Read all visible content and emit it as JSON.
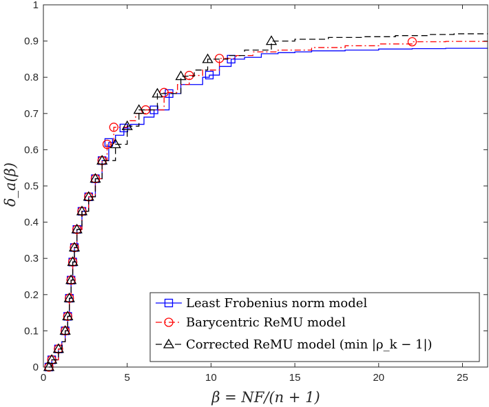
{
  "chart_data": {
    "type": "line",
    "title": "",
    "xlabel": "β = NF/(n + 1)",
    "ylabel": "δ_a(β)",
    "xlim": [
      0,
      26.5
    ],
    "ylim": [
      0,
      1
    ],
    "xticks": [
      0,
      5,
      10,
      15,
      20,
      25
    ],
    "yticks": [
      0,
      0.1,
      0.2,
      0.3,
      0.4,
      0.5,
      0.6,
      0.7,
      0.8,
      0.9,
      1
    ],
    "xtick_labels": [
      "0",
      "5",
      "10",
      "15",
      "20",
      "25"
    ],
    "ytick_labels": [
      "0",
      "0.1",
      "0.2",
      "0.3",
      "0.4",
      "0.5",
      "0.6",
      "0.7",
      "0.8",
      "0.9",
      "1"
    ],
    "grid": false,
    "legend_position": "bottom-right",
    "series": [
      {
        "name": "Least Frobenius norm model",
        "color": "#0000ff",
        "line_style": "solid",
        "marker": "square",
        "points": [
          [
            0.33,
            0.0
          ],
          [
            0.5,
            0.02
          ],
          [
            0.9,
            0.05
          ],
          [
            1.1,
            0.07
          ],
          [
            1.3,
            0.1
          ],
          [
            1.45,
            0.14
          ],
          [
            1.55,
            0.19
          ],
          [
            1.65,
            0.24
          ],
          [
            1.75,
            0.29
          ],
          [
            1.85,
            0.33
          ],
          [
            2.0,
            0.38
          ],
          [
            2.3,
            0.43
          ],
          [
            2.7,
            0.47
          ],
          [
            3.1,
            0.52
          ],
          [
            3.5,
            0.57
          ],
          [
            3.9,
            0.62
          ],
          [
            4.3,
            0.64
          ],
          [
            4.8,
            0.66
          ],
          [
            5.2,
            0.67
          ],
          [
            6.0,
            0.69
          ],
          [
            6.6,
            0.71
          ],
          [
            7.5,
            0.755
          ],
          [
            8.2,
            0.78
          ],
          [
            9.5,
            0.8
          ],
          [
            9.9,
            0.806
          ],
          [
            10.5,
            0.83
          ],
          [
            11.2,
            0.85
          ],
          [
            12.0,
            0.855
          ],
          [
            13.0,
            0.865
          ],
          [
            14.0,
            0.868
          ],
          [
            15.0,
            0.87
          ],
          [
            16.0,
            0.873
          ],
          [
            18.0,
            0.875
          ],
          [
            20.0,
            0.878
          ],
          [
            22.0,
            0.879
          ],
          [
            24.0,
            0.88
          ],
          [
            26.5,
            0.881
          ]
        ],
        "markers": [
          [
            0.33,
            0.0
          ],
          [
            0.5,
            0.02
          ],
          [
            0.9,
            0.05
          ],
          [
            1.3,
            0.1
          ],
          [
            1.45,
            0.14
          ],
          [
            1.55,
            0.19
          ],
          [
            1.65,
            0.24
          ],
          [
            1.75,
            0.29
          ],
          [
            1.85,
            0.33
          ],
          [
            2.0,
            0.38
          ],
          [
            2.3,
            0.43
          ],
          [
            2.7,
            0.47
          ],
          [
            3.1,
            0.52
          ],
          [
            3.5,
            0.57
          ],
          [
            3.9,
            0.62
          ],
          [
            4.8,
            0.66
          ],
          [
            6.6,
            0.71
          ],
          [
            7.5,
            0.755
          ],
          [
            9.9,
            0.806
          ],
          [
            11.2,
            0.85
          ]
        ]
      },
      {
        "name": "Barycentric ReMU model",
        "color": "#ff0000",
        "line_style": "dashdot",
        "marker": "circle",
        "points": [
          [
            0.33,
            0.0
          ],
          [
            0.5,
            0.02
          ],
          [
            0.9,
            0.05
          ],
          [
            1.1,
            0.07
          ],
          [
            1.3,
            0.1
          ],
          [
            1.45,
            0.14
          ],
          [
            1.55,
            0.19
          ],
          [
            1.65,
            0.24
          ],
          [
            1.75,
            0.29
          ],
          [
            1.85,
            0.33
          ],
          [
            2.0,
            0.38
          ],
          [
            2.3,
            0.43
          ],
          [
            2.7,
            0.47
          ],
          [
            3.1,
            0.52
          ],
          [
            3.5,
            0.57
          ],
          [
            3.8,
            0.615
          ],
          [
            4.2,
            0.662
          ],
          [
            5.0,
            0.68
          ],
          [
            5.5,
            0.7
          ],
          [
            6.1,
            0.71
          ],
          [
            7.2,
            0.758
          ],
          [
            8.0,
            0.78
          ],
          [
            8.7,
            0.805
          ],
          [
            9.5,
            0.82
          ],
          [
            10.5,
            0.852
          ],
          [
            11.5,
            0.86
          ],
          [
            12.5,
            0.87
          ],
          [
            14.0,
            0.875
          ],
          [
            16.0,
            0.882
          ],
          [
            18.0,
            0.887
          ],
          [
            20.0,
            0.892
          ],
          [
            22.0,
            0.898
          ],
          [
            24.0,
            0.899
          ],
          [
            26.5,
            0.9
          ]
        ],
        "markers": [
          [
            0.33,
            0.0
          ],
          [
            0.5,
            0.02
          ],
          [
            0.9,
            0.05
          ],
          [
            1.3,
            0.1
          ],
          [
            1.45,
            0.14
          ],
          [
            1.55,
            0.19
          ],
          [
            1.65,
            0.24
          ],
          [
            1.75,
            0.29
          ],
          [
            1.85,
            0.33
          ],
          [
            2.0,
            0.38
          ],
          [
            2.3,
            0.43
          ],
          [
            2.7,
            0.47
          ],
          [
            3.1,
            0.52
          ],
          [
            3.5,
            0.57
          ],
          [
            3.8,
            0.615
          ],
          [
            4.2,
            0.662
          ],
          [
            6.1,
            0.71
          ],
          [
            7.2,
            0.758
          ],
          [
            8.7,
            0.805
          ],
          [
            10.5,
            0.852
          ],
          [
            22.0,
            0.898
          ]
        ]
      },
      {
        "name": "Corrected ReMU model (min |ρ_k − 1|)",
        "color": "#000000",
        "line_style": "dashed",
        "marker": "triangle",
        "points": [
          [
            0.33,
            0.0
          ],
          [
            0.5,
            0.02
          ],
          [
            0.9,
            0.05
          ],
          [
            1.1,
            0.07
          ],
          [
            1.3,
            0.1
          ],
          [
            1.45,
            0.14
          ],
          [
            1.55,
            0.19
          ],
          [
            1.65,
            0.24
          ],
          [
            1.75,
            0.29
          ],
          [
            1.85,
            0.33
          ],
          [
            2.0,
            0.38
          ],
          [
            2.3,
            0.43
          ],
          [
            2.7,
            0.47
          ],
          [
            3.1,
            0.52
          ],
          [
            3.5,
            0.57
          ],
          [
            4.3,
            0.615
          ],
          [
            5.0,
            0.665
          ],
          [
            5.7,
            0.71
          ],
          [
            6.8,
            0.755
          ],
          [
            8.2,
            0.803
          ],
          [
            9.0,
            0.82
          ],
          [
            9.8,
            0.85
          ],
          [
            11.0,
            0.86
          ],
          [
            12.0,
            0.875
          ],
          [
            13.6,
            0.9
          ],
          [
            15.0,
            0.905
          ],
          [
            17.0,
            0.91
          ],
          [
            19.0,
            0.912
          ],
          [
            21.0,
            0.915
          ],
          [
            23.0,
            0.918
          ],
          [
            24.5,
            0.92
          ],
          [
            26.5,
            0.921
          ]
        ],
        "markers": [
          [
            0.33,
            0.0
          ],
          [
            0.5,
            0.02
          ],
          [
            0.9,
            0.05
          ],
          [
            1.3,
            0.1
          ],
          [
            1.45,
            0.14
          ],
          [
            1.55,
            0.19
          ],
          [
            1.65,
            0.24
          ],
          [
            1.75,
            0.29
          ],
          [
            1.85,
            0.33
          ],
          [
            2.0,
            0.38
          ],
          [
            2.3,
            0.43
          ],
          [
            2.7,
            0.47
          ],
          [
            3.1,
            0.52
          ],
          [
            3.5,
            0.57
          ],
          [
            4.3,
            0.615
          ],
          [
            5.0,
            0.665
          ],
          [
            5.7,
            0.71
          ],
          [
            6.8,
            0.755
          ],
          [
            8.2,
            0.803
          ],
          [
            9.8,
            0.85
          ],
          [
            13.6,
            0.9
          ]
        ]
      }
    ]
  },
  "legend": {
    "entries": [
      "Least Frobenius norm model",
      "Barycentric ReMU model",
      "Corrected ReMU model (min |ρ_k − 1|)"
    ]
  },
  "colors": {
    "axis": "#262626",
    "background": "#ffffff"
  }
}
